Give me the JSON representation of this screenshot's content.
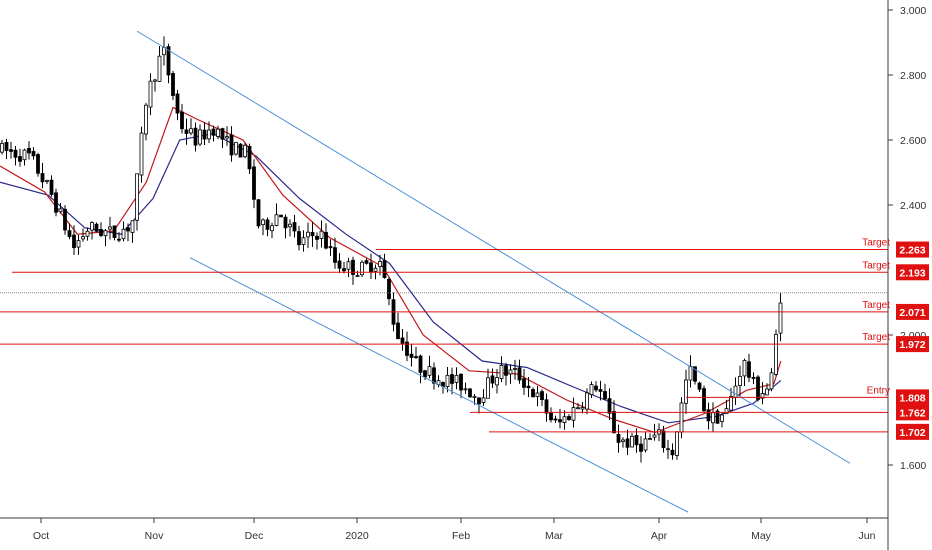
{
  "chart_data": {
    "type": "candlestick",
    "y_axis": {
      "ticks": [
        "3.000",
        "2.800",
        "2.600",
        "2.400",
        "2.000",
        "1.600"
      ],
      "ylim": [
        1.47,
        3.02
      ]
    },
    "x_axis": {
      "months": [
        "Oct",
        "Nov",
        "Dec",
        "2020",
        "Feb",
        "Mar",
        "Apr",
        "May",
        "Jun"
      ]
    },
    "levels": [
      {
        "tag": "Target",
        "value": "2.263"
      },
      {
        "tag": "Target",
        "value": "2.193"
      },
      {
        "tag": "Target",
        "value": "2.071"
      },
      {
        "tag": "Target",
        "value": "1.972"
      },
      {
        "tag": "Entry",
        "value": "1.808"
      },
      {
        "tag": "",
        "value": "1.762"
      },
      {
        "tag": "",
        "value": "1.702"
      }
    ],
    "current_price_line": 2.13,
    "channel": {
      "upper": [
        [
          137,
          2.935
        ],
        [
          850,
          1.605
        ]
      ],
      "lower": [
        [
          190,
          2.238
        ],
        [
          688,
          1.455
        ]
      ]
    },
    "price_path": [
      [
        "2019-09-26",
        2.57
      ],
      [
        "2019-10-01",
        2.55
      ],
      [
        "2019-10-07",
        2.43
      ],
      [
        "2019-10-13",
        2.27
      ],
      [
        "2019-10-17",
        2.33
      ],
      [
        "2019-10-24",
        2.31
      ],
      [
        "2019-10-29",
        2.34
      ],
      [
        "2019-11-02",
        2.73
      ],
      [
        "2019-11-07",
        2.88
      ],
      [
        "2019-11-12",
        2.65
      ],
      [
        "2019-11-17",
        2.6
      ],
      [
        "2019-11-22",
        2.64
      ],
      [
        "2019-11-27",
        2.58
      ],
      [
        "2019-12-02",
        2.56
      ],
      [
        "2019-12-06",
        2.32
      ],
      [
        "2019-12-12",
        2.38
      ],
      [
        "2019-12-18",
        2.28
      ],
      [
        "2019-12-24",
        2.32
      ],
      [
        "2019-12-29",
        2.22
      ],
      [
        "2020-01-05",
        2.2
      ],
      [
        "2020-01-11",
        2.23
      ],
      [
        "2020-01-16",
        2.01
      ],
      [
        "2020-01-22",
        1.91
      ],
      [
        "2020-01-28",
        1.87
      ],
      [
        "2020-02-04",
        1.85
      ],
      [
        "2020-02-10",
        1.81
      ],
      [
        "2020-02-16",
        1.89
      ],
      [
        "2020-02-22",
        1.88
      ],
      [
        "2020-02-28",
        1.81
      ],
      [
        "2020-03-05",
        1.72
      ],
      [
        "2020-03-11",
        1.78
      ],
      [
        "2020-03-17",
        1.85
      ],
      [
        "2020-03-23",
        1.68
      ],
      [
        "2020-03-29",
        1.66
      ],
      [
        "2020-04-04",
        1.69
      ],
      [
        "2020-04-08",
        1.63
      ],
      [
        "2020-04-13",
        1.9
      ],
      [
        "2020-04-19",
        1.74
      ],
      [
        "2020-04-24",
        1.76
      ],
      [
        "2020-04-29",
        1.92
      ],
      [
        "2020-05-03",
        1.82
      ],
      [
        "2020-05-07",
        1.84
      ],
      [
        "2020-05-10",
        2.13
      ]
    ],
    "red_ma": [
      [
        "2019-09-26",
        2.52
      ],
      [
        "2019-10-05",
        2.44
      ],
      [
        "2019-10-14",
        2.31
      ],
      [
        "2019-10-24",
        2.32
      ],
      [
        "2019-11-02",
        2.47
      ],
      [
        "2019-11-10",
        2.7
      ],
      [
        "2019-11-18",
        2.66
      ],
      [
        "2019-12-01",
        2.6
      ],
      [
        "2019-12-13",
        2.43
      ],
      [
        "2019-12-27",
        2.3
      ],
      [
        "2020-01-12",
        2.21
      ],
      [
        "2020-01-24",
        2.0
      ],
      [
        "2020-02-07",
        1.89
      ],
      [
        "2020-02-22",
        1.88
      ],
      [
        "2020-03-08",
        1.8
      ],
      [
        "2020-03-22",
        1.74
      ],
      [
        "2020-04-03",
        1.7
      ],
      [
        "2020-04-18",
        1.76
      ],
      [
        "2020-04-30",
        1.83
      ],
      [
        "2020-05-08",
        1.85
      ],
      [
        "2020-05-10",
        1.92
      ]
    ],
    "blue_ma": [
      [
        "2019-09-26",
        2.47
      ],
      [
        "2019-10-06",
        2.43
      ],
      [
        "2019-10-16",
        2.33
      ],
      [
        "2019-10-26",
        2.31
      ],
      [
        "2019-11-04",
        2.42
      ],
      [
        "2019-11-12",
        2.6
      ],
      [
        "2019-11-22",
        2.62
      ],
      [
        "2019-12-05",
        2.55
      ],
      [
        "2019-12-18",
        2.42
      ],
      [
        "2020-01-01",
        2.31
      ],
      [
        "2020-01-14",
        2.22
      ],
      [
        "2020-01-27",
        2.04
      ],
      [
        "2020-02-11",
        1.92
      ],
      [
        "2020-02-25",
        1.9
      ],
      [
        "2020-03-10",
        1.84
      ],
      [
        "2020-03-24",
        1.78
      ],
      [
        "2020-04-07",
        1.73
      ],
      [
        "2020-04-21",
        1.75
      ],
      [
        "2020-05-02",
        1.79
      ],
      [
        "2020-05-10",
        1.86
      ]
    ]
  }
}
